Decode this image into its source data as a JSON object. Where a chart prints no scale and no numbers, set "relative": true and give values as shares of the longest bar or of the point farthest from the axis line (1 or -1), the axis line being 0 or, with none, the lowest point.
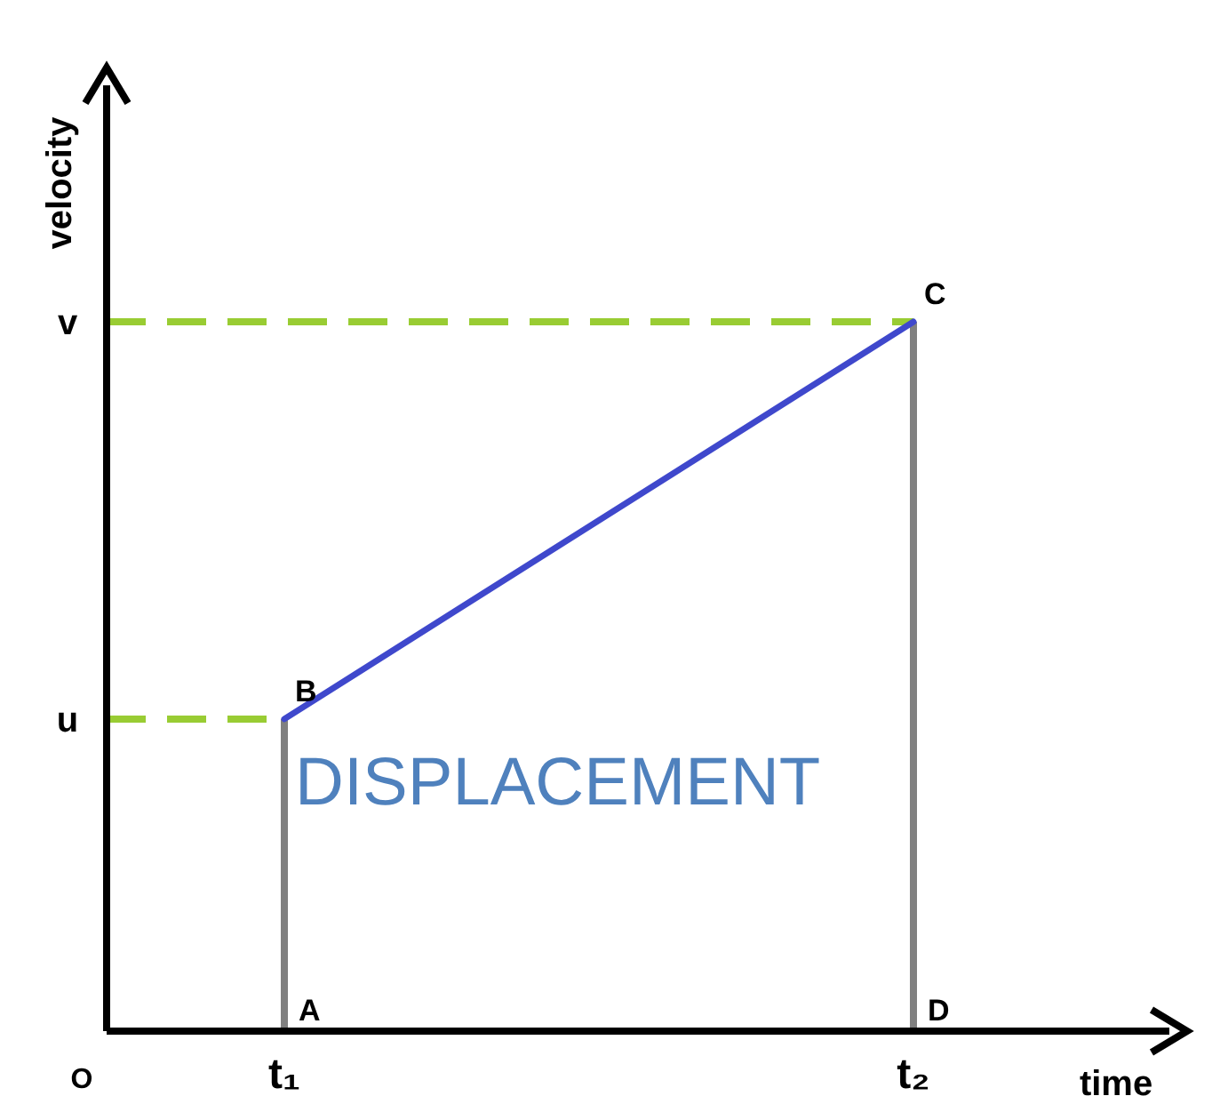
{
  "chart_data": {
    "type": "line",
    "relative": true,
    "xlabel": "time",
    "ylabel": "velocity",
    "categories": [
      "t₁",
      "t₂"
    ],
    "series": [
      {
        "color": "#3f48cc",
        "values": [
          0.44,
          1
        ]
      }
    ],
    "ref_lines": [
      {
        "axis": "y",
        "value": 0.44,
        "label": "u",
        "color": "#99cc33",
        "line_style": "dashed"
      },
      {
        "axis": "y",
        "value": 1,
        "label": "v",
        "color": "#99cc33",
        "line_style": "dashed"
      },
      {
        "axis": "x",
        "value": "t₁",
        "label": "A",
        "color": "#808080",
        "line_style": "solid"
      },
      {
        "axis": "x",
        "value": "t₂",
        "label": "D",
        "color": "#808080",
        "line_style": "solid"
      }
    ],
    "annotations": [
      "O",
      {
        "text": "B",
        "x": "t₁",
        "y": 0.44
      },
      {
        "text": "C",
        "x": "t₂",
        "y": 1
      },
      {
        "text": "DISPLACEMENT",
        "x": "t₁",
        "y": 0.3
      }
    ],
    "marker": "none",
    "line_style": "solid"
  }
}
